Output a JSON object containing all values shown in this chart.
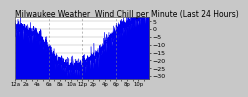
{
  "title": "Milwaukee Weather  Wind Chill per Minute (Last 24 Hours)",
  "title_fontsize": 5.5,
  "bg_color": "#c8c8c8",
  "plot_bg_color": "#ffffff",
  "line_color": "#0000ee",
  "fill_color": "#0000ee",
  "ylim": [
    -32,
    8
  ],
  "yticks": [
    5,
    0,
    -5,
    -10,
    -15,
    -20,
    -25,
    -30
  ],
  "ytick_fontsize": 4.5,
  "xtick_fontsize": 3.8,
  "num_points": 1440,
  "vline_positions": [
    360,
    720,
    1080
  ],
  "vline_color": "#888888",
  "grid_color": "#aaaaaa"
}
